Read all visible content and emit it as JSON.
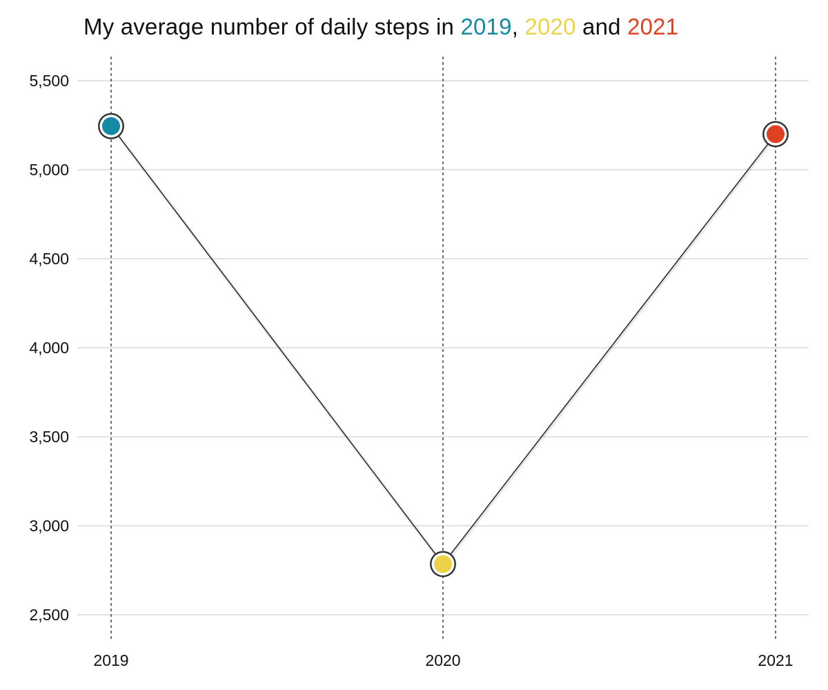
{
  "chart_data": {
    "type": "line",
    "title": {
      "prefix": "My average number of daily steps in ",
      "year1": "2019",
      "sep1": ", ",
      "year2": "2020",
      "sep2": " and ",
      "year3": "2021"
    },
    "xlabel": "",
    "ylabel": "",
    "categories": [
      "2019",
      "2020",
      "2021"
    ],
    "values": [
      5245,
      2785,
      5200
    ],
    "point_colors": [
      "#138aa4",
      "#ecd249",
      "#e04022"
    ],
    "ylim": [
      2350,
      5630
    ],
    "yticks": [
      2500,
      3000,
      3500,
      4000,
      4500,
      5000,
      5500
    ],
    "ytick_labels": [
      "2,500",
      "3,000",
      "3,500",
      "4,000",
      "4,500",
      "5,000",
      "5,500"
    ],
    "grid": "horizontal",
    "vertical_guides": "dashed",
    "legend": "none"
  },
  "colors": {
    "grid": "#d0d0d0",
    "line": "#1a1a1a",
    "marker_outline": "#333333",
    "text": "#111111"
  }
}
